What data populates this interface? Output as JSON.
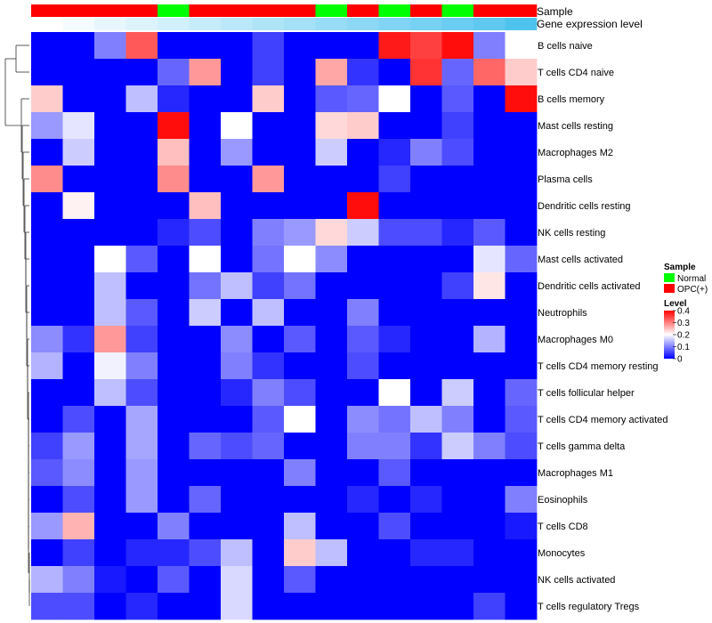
{
  "chart_data": {
    "type": "heatmap",
    "title": "",
    "annotation_labels": {
      "sample": "Sample",
      "expression": "Gene expression level"
    },
    "rows": [
      "B cells naive",
      "T cells CD4 naive",
      "B cells memory",
      "Mast cells resting",
      "Macrophages M2",
      "Plasma cells",
      "Dendritic cells resting",
      "NK cells resting",
      "Mast cells activated",
      "Dendritic cells activated",
      "Neutrophils",
      "Macrophages M0",
      "T cells CD4 memory resting",
      "T cells follicular helper",
      "T cells CD4 memory activated",
      "T cells gamma delta",
      "Macrophages M1",
      "Eosinophils",
      "T cells CD8",
      "Monocytes",
      "NK cells activated",
      "T cells regulatory  Tregs"
    ],
    "sample_groups": [
      "OPC(+)",
      "OPC(+)",
      "OPC(+)",
      "OPC(+)",
      "Normal",
      "OPC(+)",
      "OPC(+)",
      "OPC(+)",
      "OPC(+)",
      "Normal",
      "OPC(+)",
      "Normal",
      "OPC(+)",
      "Normal",
      "OPC(+)",
      "OPC(+)"
    ],
    "expression_level": [
      0.05,
      0.07,
      0.09,
      0.11,
      0.13,
      0.15,
      0.17,
      0.19,
      0.21,
      0.23,
      0.25,
      0.27,
      0.29,
      0.31,
      0.33,
      0.36
    ],
    "values": [
      [
        0,
        0,
        0.1,
        0.33,
        0,
        0,
        0,
        0.05,
        0,
        0,
        0,
        0.38,
        0.35,
        0.39,
        0.1,
        0.2
      ],
      [
        0,
        0,
        0,
        0,
        0.08,
        0.28,
        0,
        0.05,
        0,
        0.27,
        0.04,
        0,
        0.36,
        0.08,
        0.32,
        0.24
      ],
      [
        0.24,
        0,
        0,
        0.15,
        0.03,
        0,
        0,
        0.24,
        0,
        0.07,
        0.08,
        0.2,
        0,
        0.07,
        0,
        0.39
      ],
      [
        0.12,
        0.18,
        0,
        0,
        0.39,
        0,
        0.2,
        0,
        0,
        0.23,
        0.24,
        0,
        0,
        0.05,
        0,
        0
      ],
      [
        0,
        0.16,
        0,
        0,
        0.25,
        0,
        0.12,
        0,
        0,
        0.16,
        0,
        0.03,
        0.1,
        0.06,
        0,
        0
      ],
      [
        0.29,
        0,
        0,
        0,
        0.29,
        0,
        0,
        0.28,
        0,
        0,
        0,
        0.05,
        0,
        0,
        0,
        0
      ],
      [
        0,
        0.21,
        0,
        0,
        0,
        0.25,
        0,
        0,
        0,
        0,
        0.39,
        0,
        0,
        0,
        0,
        0
      ],
      [
        0,
        0,
        0,
        0,
        0.03,
        0.06,
        0,
        0.1,
        0.12,
        0.23,
        0.16,
        0.06,
        0.06,
        0.03,
        0.07,
        0
      ],
      [
        0,
        0,
        0.2,
        0.07,
        0,
        0.2,
        0,
        0.09,
        0.2,
        0.11,
        0,
        0,
        0,
        0,
        0.18,
        0.08
      ],
      [
        0,
        0,
        0.15,
        0,
        0,
        0.09,
        0.15,
        0.05,
        0.09,
        0,
        0,
        0,
        0,
        0.05,
        0.22,
        0
      ],
      [
        0,
        0,
        0.15,
        0.07,
        0,
        0.16,
        0,
        0.15,
        0,
        0,
        0.1,
        0,
        0,
        0,
        0,
        0
      ],
      [
        0.11,
        0.04,
        0.28,
        0.05,
        0,
        0,
        0.11,
        0,
        0.07,
        0,
        0.07,
        0.03,
        0,
        0,
        0.14,
        0
      ],
      [
        0.14,
        0,
        0.19,
        0.1,
        0,
        0,
        0.1,
        0.04,
        0,
        0,
        0.06,
        0,
        0,
        0,
        0,
        0
      ],
      [
        0,
        0,
        0.15,
        0.06,
        0,
        0,
        0.03,
        0.1,
        0.06,
        0,
        0,
        0.2,
        0,
        0.16,
        0,
        0.08
      ],
      [
        0,
        0.06,
        0,
        0.13,
        0,
        0,
        0,
        0.07,
        0.2,
        0,
        0.11,
        0.09,
        0.15,
        0.1,
        0,
        0.07
      ],
      [
        0.05,
        0.12,
        0,
        0.13,
        0,
        0.08,
        0.06,
        0.08,
        0,
        0,
        0.1,
        0.1,
        0.04,
        0.16,
        0.1,
        0.06
      ],
      [
        0.07,
        0.11,
        0,
        0.12,
        0,
        0,
        0,
        0,
        0.1,
        0,
        0,
        0.07,
        0,
        0,
        0,
        0
      ],
      [
        0,
        0.06,
        0,
        0.12,
        0,
        0.08,
        0,
        0,
        0,
        0,
        0.03,
        0,
        0.03,
        0,
        0,
        0.1
      ],
      [
        0.12,
        0.26,
        0,
        0,
        0.1,
        0,
        0,
        0,
        0.15,
        0,
        0,
        0.06,
        0,
        0,
        0,
        0.02
      ],
      [
        0,
        0.05,
        0,
        0.03,
        0.03,
        0.06,
        0.15,
        0,
        0.24,
        0.15,
        0,
        0,
        0.03,
        0.03,
        0,
        0
      ],
      [
        0.14,
        0.1,
        0.02,
        0,
        0.07,
        0,
        0.17,
        0,
        0.07,
        0,
        0,
        0,
        0,
        0,
        0,
        0
      ],
      [
        0.06,
        0.06,
        0,
        0.03,
        0,
        0,
        0.17,
        0,
        0,
        0,
        0,
        0,
        0,
        0,
        0.05,
        0
      ]
    ],
    "legend": {
      "sample_title": "Sample",
      "sample_items": [
        {
          "label": "Normal",
          "color": "#00ff00"
        },
        {
          "label": "OPC(+)",
          "color": "#ff0000"
        }
      ],
      "level_title": "Level",
      "level_ticks": [
        "0.4",
        "0.3",
        "0.2",
        "0.1",
        "0"
      ],
      "level_tick_values": [
        0.4,
        0.3,
        0.2,
        0.1,
        0
      ],
      "placement": "right"
    },
    "color_scale": {
      "low": "#0000ff",
      "mid": "#ffffff",
      "high": "#ff0000",
      "min": 0,
      "mid_value": 0.2,
      "max": 0.4
    },
    "annotation_colors": {
      "Normal": "#00ff00",
      "OPC(+)": "#ff0000",
      "expr_low": "#ffffff",
      "expr_high": "#4ec3ee"
    }
  }
}
